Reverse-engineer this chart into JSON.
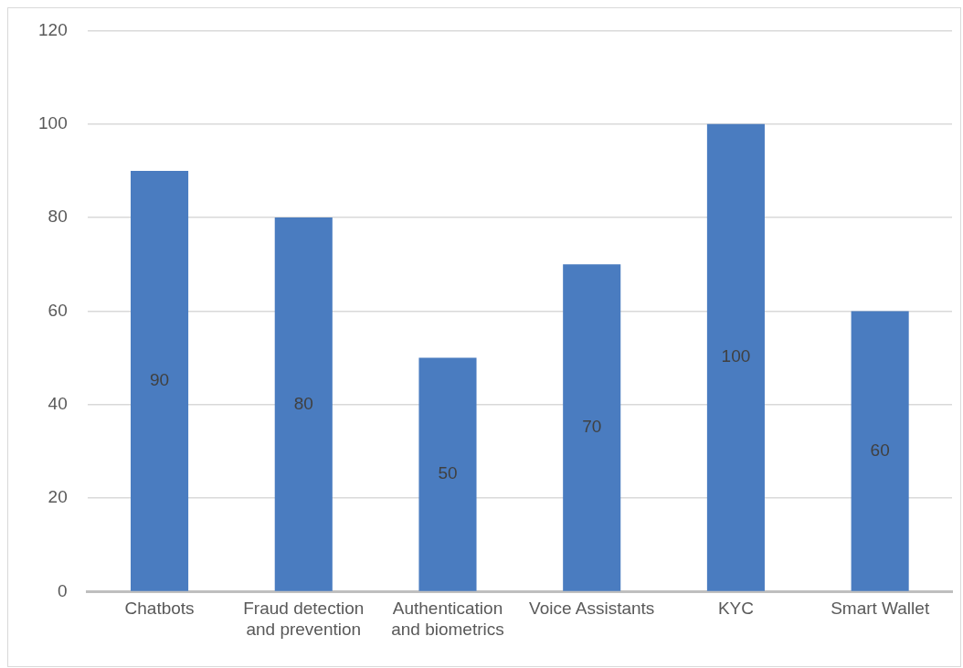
{
  "chart_data": {
    "type": "bar",
    "categories": [
      "Chatbots",
      "Fraud detection and prevention",
      "Authentication and biometrics",
      "Voice Assistants",
      "KYC",
      "Smart Wallet"
    ],
    "values": [
      90,
      80,
      50,
      70,
      100,
      60
    ],
    "color": "#4a7cc0",
    "ylim": [
      0,
      120
    ],
    "yticks": [
      0,
      20,
      40,
      60,
      80,
      100,
      120
    ],
    "grid": "y",
    "legend": false,
    "data_labels": true
  }
}
